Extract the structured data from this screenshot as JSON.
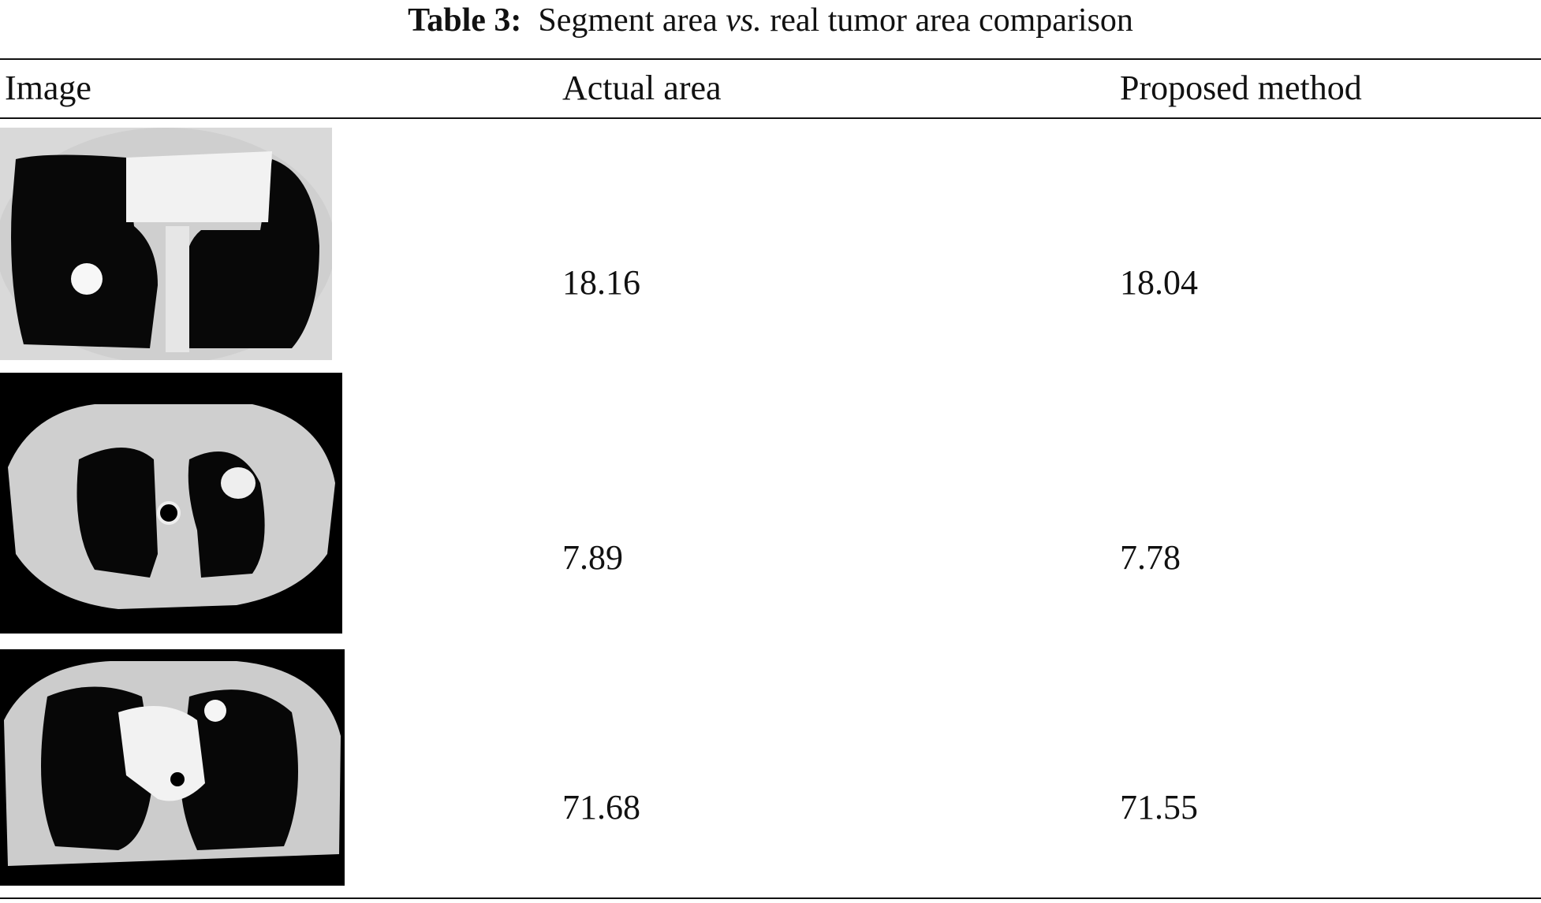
{
  "table": {
    "caption": {
      "label": "Table 3:",
      "before": "Segment area",
      "emphasis": "vs.",
      "after": "real tumor area comparison"
    },
    "header": [
      "Image",
      "Actual area",
      "Proposed method"
    ],
    "rows": [
      [
        "18.16",
        "18.04"
      ],
      [
        "7.89",
        "7.78"
      ],
      [
        "71.68",
        "71.55"
      ]
    ]
  }
}
